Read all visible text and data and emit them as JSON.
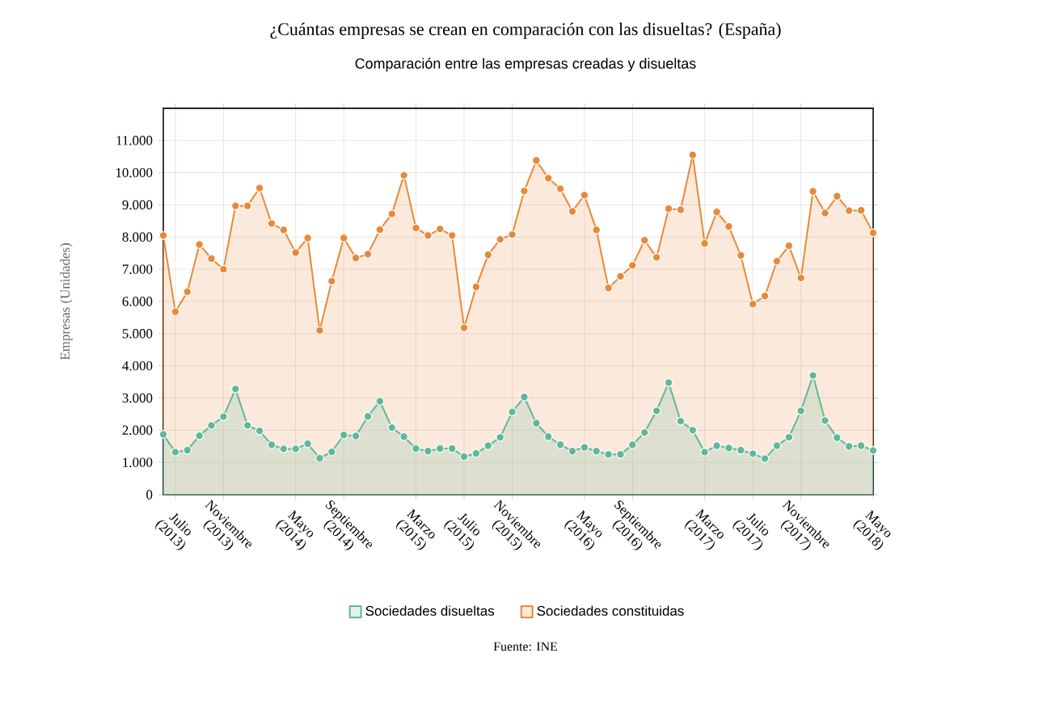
{
  "chart_data": {
    "type": "area",
    "title": "¿Cuántas empresas se crean en comparación con las disueltas? (España)",
    "subtitle": "Comparación entre las empresas creadas y disueltas",
    "ylabel": "Empresas (Unidades)",
    "annotations": [
      "Fuente: INE"
    ],
    "categories": [
      null,
      "Julio (2013)",
      null,
      null,
      null,
      "Noviembre (2013)",
      null,
      null,
      null,
      null,
      null,
      "Mayo (2014)",
      null,
      null,
      null,
      "Septiembre (2014)",
      null,
      null,
      null,
      null,
      null,
      "Marzo (2015)",
      null,
      null,
      null,
      "Julio (2015)",
      null,
      null,
      null,
      "Noviembre (2015)",
      null,
      null,
      null,
      null,
      null,
      "Mayo (2016)",
      null,
      null,
      null,
      "Septiembre (2016)",
      null,
      null,
      null,
      null,
      null,
      "Marzo (2017)",
      null,
      null,
      null,
      "Julio (2017)",
      null,
      null,
      null,
      "Noviembre (2017)",
      null,
      null,
      null,
      null,
      null,
      "Mayo (2018)"
    ],
    "series": [
      {
        "name": "Sociedades disueltas",
        "color": "#5fb89a",
        "values": [
          1870,
          1320,
          1380,
          1830,
          2150,
          2420,
          3280,
          2150,
          1980,
          1550,
          1420,
          1420,
          1580,
          1130,
          1330,
          1850,
          1820,
          2430,
          2900,
          2080,
          1800,
          1430,
          1350,
          1430,
          1430,
          1180,
          1280,
          1520,
          1780,
          2570,
          3030,
          2220,
          1800,
          1550,
          1350,
          1470,
          1350,
          1250,
          1250,
          1550,
          1930,
          2600,
          3480,
          2280,
          2000,
          1320,
          1520,
          1450,
          1380,
          1270,
          1120,
          1520,
          1780,
          2600,
          3700,
          2300,
          1770,
          1500,
          1520,
          1370
        ]
      },
      {
        "name": "Sociedades constituidas",
        "color": "#e8893a",
        "values": [
          8050,
          5680,
          6300,
          7770,
          7330,
          7000,
          8970,
          8970,
          9520,
          8420,
          8220,
          7520,
          7970,
          5100,
          6630,
          7970,
          7350,
          7470,
          8230,
          8720,
          9920,
          8280,
          8050,
          8250,
          8050,
          5180,
          6450,
          7450,
          7930,
          8080,
          9430,
          10380,
          9830,
          9500,
          8800,
          9300,
          8220,
          6420,
          6780,
          7120,
          7900,
          7370,
          8880,
          8850,
          10550,
          7800,
          8780,
          8330,
          7430,
          5920,
          6170,
          7250,
          7730,
          6730,
          9420,
          8750,
          9270,
          8820,
          8830,
          8130
        ]
      }
    ],
    "ylim": [
      0,
      12000
    ],
    "yticks": [
      {
        "value": 0,
        "label": "0"
      },
      {
        "value": 1000,
        "label": "1.000"
      },
      {
        "value": 2000,
        "label": "2.000"
      },
      {
        "value": 3000,
        "label": "3.000"
      },
      {
        "value": 4000,
        "label": "4.000"
      },
      {
        "value": 5000,
        "label": "5.000"
      },
      {
        "value": 6000,
        "label": "6.000"
      },
      {
        "value": 7000,
        "label": "7.000"
      },
      {
        "value": 8000,
        "label": "8.000"
      },
      {
        "value": 9000,
        "label": "9.000"
      },
      {
        "value": 10000,
        "label": "10.000"
      },
      {
        "value": 11000,
        "label": "11.000"
      }
    ],
    "grid": true,
    "legend": "bottom",
    "marker": "circle"
  }
}
